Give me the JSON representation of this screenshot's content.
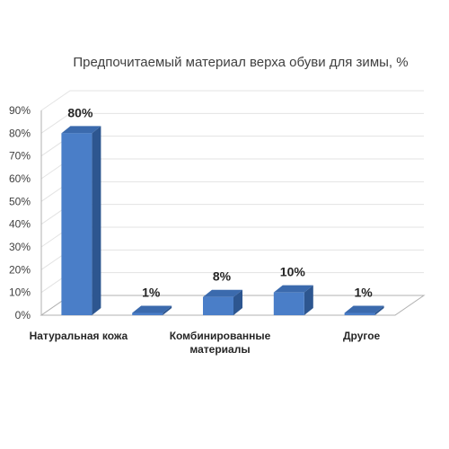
{
  "chart_data": {
    "type": "bar",
    "title": "Предпочитаемый материал верха обуви для зимы, %",
    "categories": [
      [
        "Натуральная кожа"
      ],
      [
        ""
      ],
      [
        "Комбинированные",
        "материалы"
      ],
      [
        ""
      ],
      [
        "Другое"
      ]
    ],
    "values": [
      80,
      1,
      8,
      10,
      1
    ],
    "data_labels": [
      "80%",
      "1%",
      "8%",
      "10%",
      "1%"
    ],
    "y_ticks": [
      "0%",
      "10%",
      "20%",
      "30%",
      "40%",
      "50%",
      "60%",
      "70%",
      "80%",
      "90%"
    ],
    "ylim": [
      0,
      90
    ],
    "grid": true,
    "style": "3d-column",
    "colors": {
      "bar_front": "#4a7ec8",
      "bar_side": "#2d5690",
      "bar_top": "#3b6aad",
      "axis": "#b0b0b0",
      "grid": "#e3e3e3"
    }
  }
}
